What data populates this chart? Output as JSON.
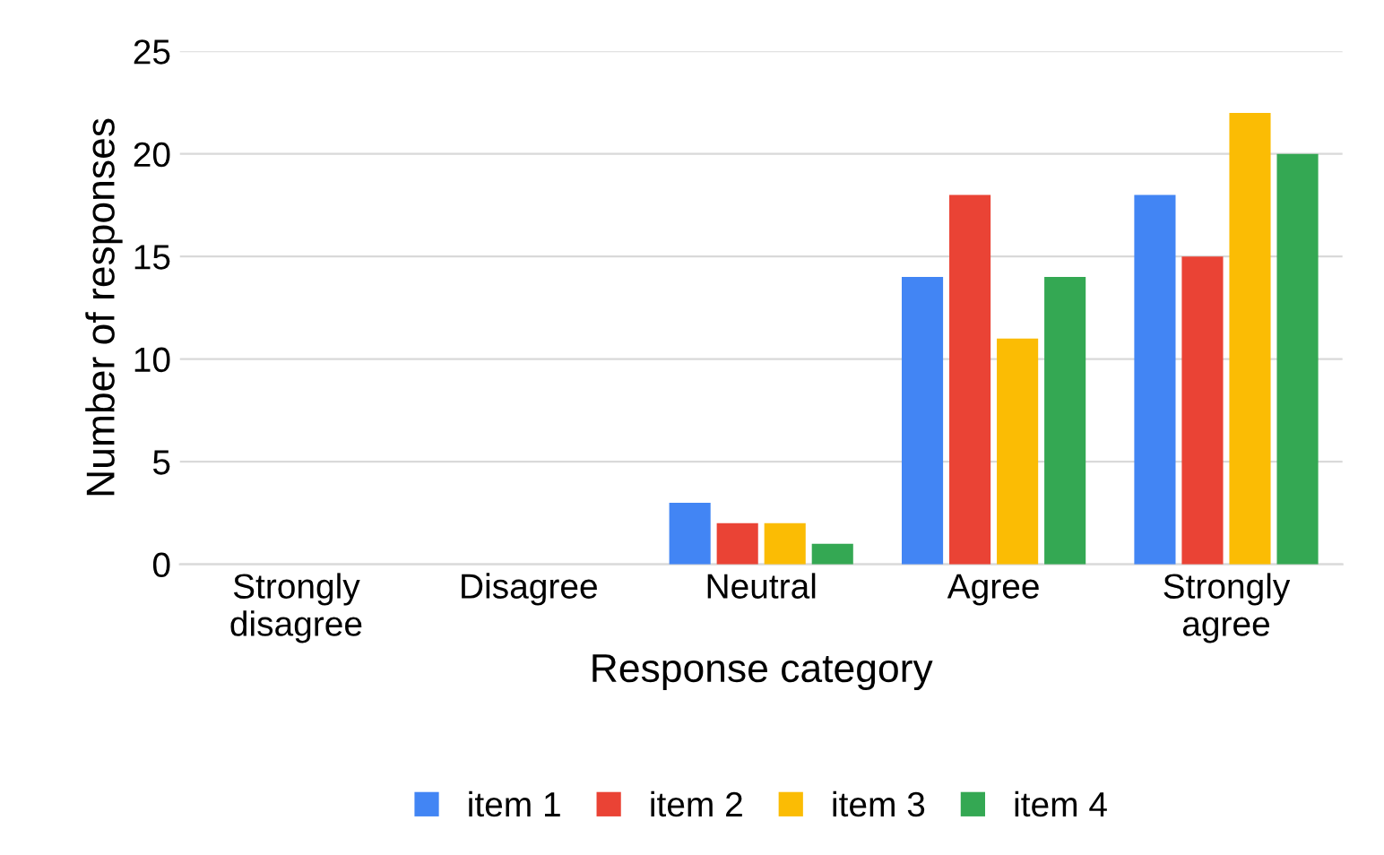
{
  "chart_data": {
    "type": "bar",
    "xlabel": "Response category",
    "ylabel": "Number of responses",
    "categories": [
      "Strongly\ndisagree",
      "Disagree",
      "Neutral",
      "Agree",
      "Strongly\nagree"
    ],
    "series": [
      {
        "name": "item 1",
        "color": "#4285f4",
        "values": [
          0,
          0,
          3,
          14,
          18
        ]
      },
      {
        "name": "item 2",
        "color": "#ea4335",
        "values": [
          0,
          0,
          2,
          18,
          15
        ]
      },
      {
        "name": "item 3",
        "color": "#fbbc04",
        "values": [
          0,
          0,
          2,
          11,
          22
        ]
      },
      {
        "name": "item 4",
        "color": "#34a853",
        "values": [
          0,
          0,
          1,
          14,
          20
        ]
      }
    ],
    "ylim": [
      0,
      25
    ],
    "yticks": [
      0,
      5,
      10,
      15,
      20,
      25
    ],
    "grid": "y",
    "legend": "bottom"
  }
}
